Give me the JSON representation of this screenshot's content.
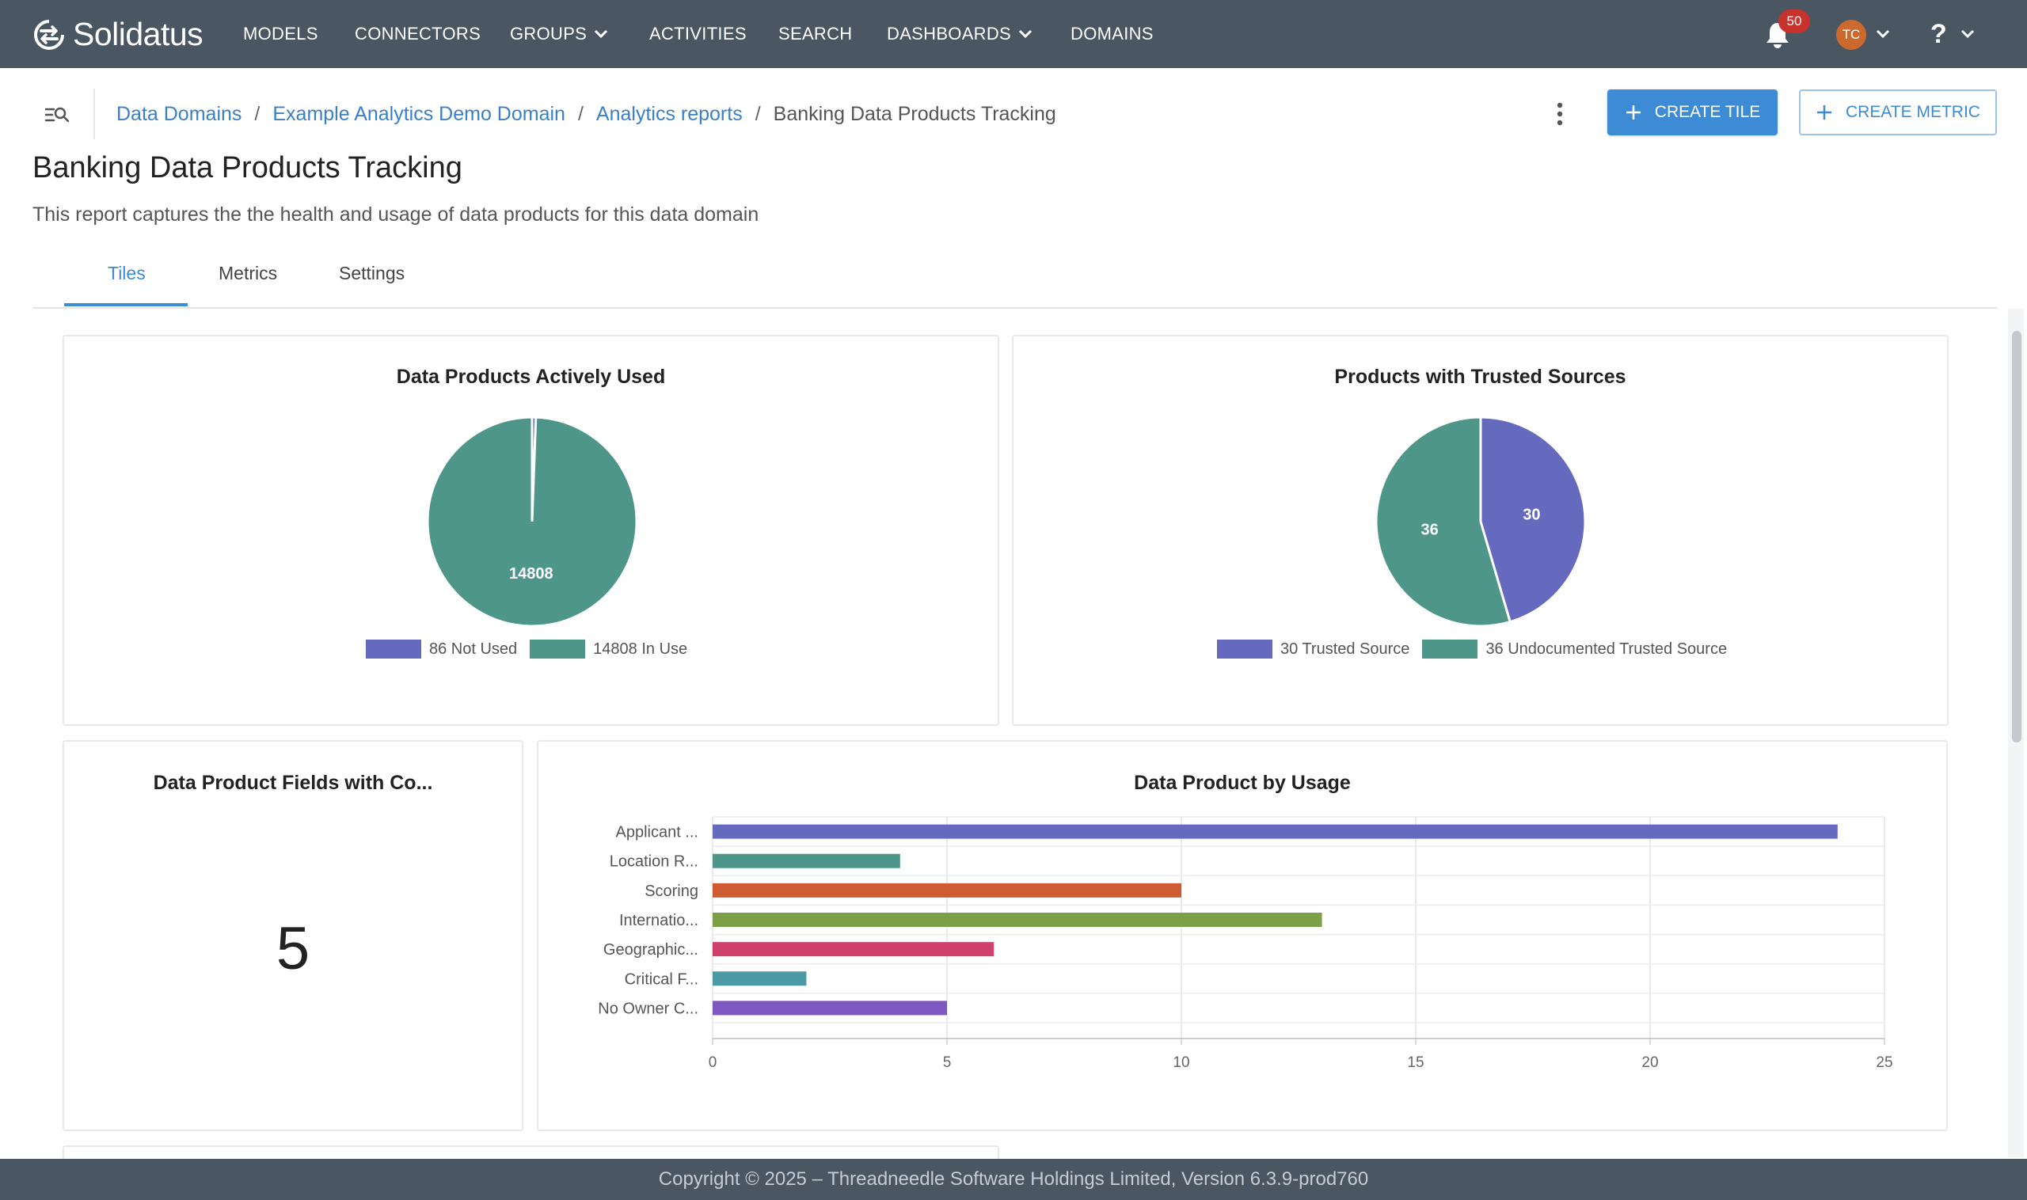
{
  "app": {
    "name": "Solidatus",
    "notification_count": "50",
    "user_initials": "TC",
    "help_symbol": "?"
  },
  "nav": {
    "items": [
      {
        "label": "MODELS"
      },
      {
        "label": "CONNECTORS"
      },
      {
        "label": "GROUPS"
      },
      {
        "label": "ACTIVITIES"
      },
      {
        "label": "SEARCH"
      },
      {
        "label": "DASHBOARDS"
      },
      {
        "label": "DOMAINS"
      }
    ]
  },
  "breadcrumb": {
    "items": [
      "Data Domains",
      "Example Analytics Demo Domain",
      "Analytics reports"
    ],
    "separator": "/",
    "current": "Banking Data Products Tracking"
  },
  "toolbar": {
    "create_tile_label": "CREATE TILE",
    "create_metric_label": "CREATE METRIC"
  },
  "page": {
    "title": "Banking Data Products Tracking",
    "description": "This report captures the the health and usage of data products for this data domain"
  },
  "tabs": [
    {
      "label": "Tiles",
      "active": true
    },
    {
      "label": "Metrics",
      "active": false
    },
    {
      "label": "Settings",
      "active": false
    }
  ],
  "tiles": {
    "metric_title": "Data Product Fields with Co...",
    "metric_value": "5"
  },
  "colors": {
    "accent": "#3d8bd5",
    "nav_bg": "#4a5661",
    "purple": "#666abf",
    "teal": "#4f968a",
    "orange": "#cf5b33",
    "green": "#7ba048",
    "pink": "#cf416c",
    "cyan": "#4c9aa5",
    "violet": "#7e58c2"
  },
  "chart_data": [
    {
      "type": "pie",
      "title": "Data Products Actively Used",
      "slices": [
        {
          "label": "Not Used",
          "value": 86,
          "legend": "86 Not Used",
          "color": "#666abf"
        },
        {
          "label": "In Use",
          "value": 14808,
          "legend": "14808 In Use",
          "color": "#4f968a"
        }
      ]
    },
    {
      "type": "pie",
      "title": "Products with Trusted Sources",
      "slices": [
        {
          "label": "Trusted Source",
          "value": 30,
          "legend": "30 Trusted Source",
          "color": "#666abf"
        },
        {
          "label": "Undocumented Trusted Source",
          "value": 36,
          "legend": "36 Undocumented Trusted Source",
          "color": "#4f968a"
        }
      ]
    },
    {
      "type": "bar",
      "orientation": "horizontal",
      "title": "Data Product by Usage",
      "categories": [
        "Applicant ...",
        "Location R...",
        "Scoring",
        "Internatio...",
        "Geographic...",
        "Critical F...",
        "No Owner C..."
      ],
      "values": [
        24,
        4,
        10,
        13,
        6,
        2,
        5
      ],
      "colors": [
        "#666abf",
        "#4f968a",
        "#cf5b33",
        "#7ba048",
        "#cf416c",
        "#4c9aa5",
        "#7e58c2"
      ],
      "xlim": [
        0,
        25
      ],
      "xticks": [
        0,
        5,
        10,
        15,
        20,
        25
      ],
      "grid": true
    }
  ],
  "footer": {
    "text": "Copyright © 2025 – Threadneedle Software Holdings Limited, Version 6.3.9-prod760"
  }
}
